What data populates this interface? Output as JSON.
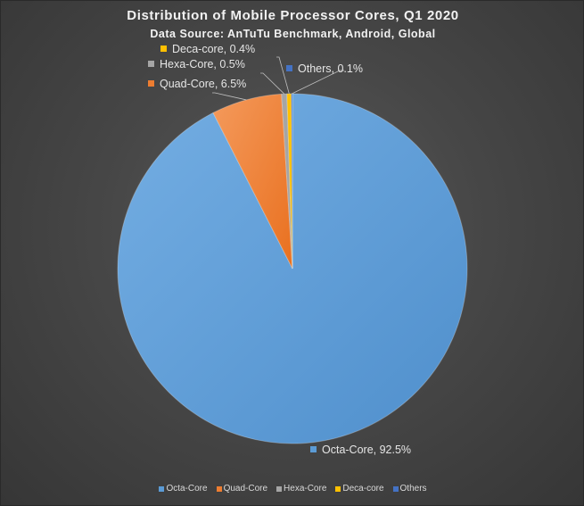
{
  "chart_data": {
    "type": "pie",
    "title": "Distribution of Mobile Processor Cores, Q1 2020",
    "subtitle": "Data Source: AnTuTu Benchmark, Android, Global",
    "slices": [
      {
        "name": "Octa-Core",
        "value": 92.5,
        "label": "Octa-Core, 92.5%",
        "color": "#5b9bd5"
      },
      {
        "name": "Quad-Core",
        "value": 6.5,
        "label": "Quad-Core, 6.5%",
        "color": "#ed7d31"
      },
      {
        "name": "Hexa-Core",
        "value": 0.5,
        "label": "Hexa-Core, 0.5%",
        "color": "#a5a5a5"
      },
      {
        "name": "Deca-core",
        "value": 0.4,
        "label": "Deca-core, 0.4%",
        "color": "#ffc000"
      },
      {
        "name": "Others",
        "value": 0.1,
        "label": "Others, 0.1%",
        "color": "#4472c4"
      }
    ],
    "legend_position": "bottom"
  }
}
